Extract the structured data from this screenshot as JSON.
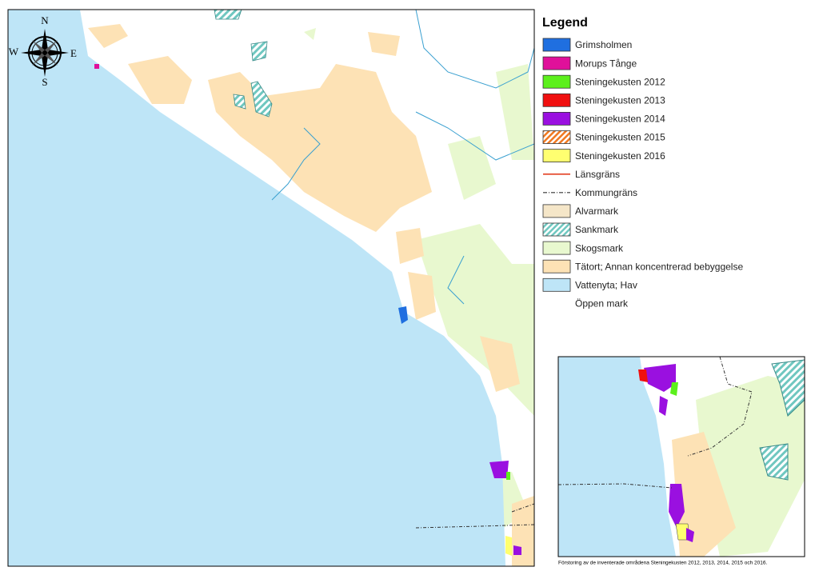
{
  "compass": {
    "n": "N",
    "w": "W",
    "e": "E",
    "s": "S"
  },
  "legend": {
    "title": "Legend",
    "items": [
      {
        "label": "Grimsholmen",
        "style": "fill",
        "color": "#1f6fe0"
      },
      {
        "label": "Morups Tånge",
        "style": "fill",
        "color": "#e0109a"
      },
      {
        "label": "Steningekusten 2012",
        "style": "fill",
        "color": "#5cf01c"
      },
      {
        "label": "Steningekusten 2013",
        "style": "fill",
        "color": "#f01010"
      },
      {
        "label": "Steningekusten 2014",
        "style": "fill",
        "color": "#9a10e0"
      },
      {
        "label": "Steningekusten 2015",
        "style": "hatch",
        "color": "#f07820"
      },
      {
        "label": "Steningekusten 2016",
        "style": "fill",
        "color": "#ffff70"
      },
      {
        "label": "Länsgräns",
        "style": "line",
        "color": "#e03010"
      },
      {
        "label": "Kommungräns",
        "style": "dashed",
        "color": "#333333"
      },
      {
        "label": "Alvarmark",
        "style": "fill",
        "color": "#f5e6c8"
      },
      {
        "label": "Sankmark",
        "style": "hatch",
        "color": "#6fc7c0"
      },
      {
        "label": "Skogsmark",
        "style": "fill",
        "color": "#e8f8cf"
      },
      {
        "label": "Tätort; Annan koncentrerad bebyggelse",
        "style": "fill",
        "color": "#fde2b5"
      },
      {
        "label": "Vattenyta; Hav",
        "style": "fill",
        "color": "#bee5f7"
      },
      {
        "label": "Öppen mark",
        "style": "none",
        "color": "#ffffff"
      }
    ]
  },
  "inset": {
    "caption": "Förstoring av de inventerade områdena Steningekusten 2012, 2013, 2014, 2015 och 2016."
  }
}
